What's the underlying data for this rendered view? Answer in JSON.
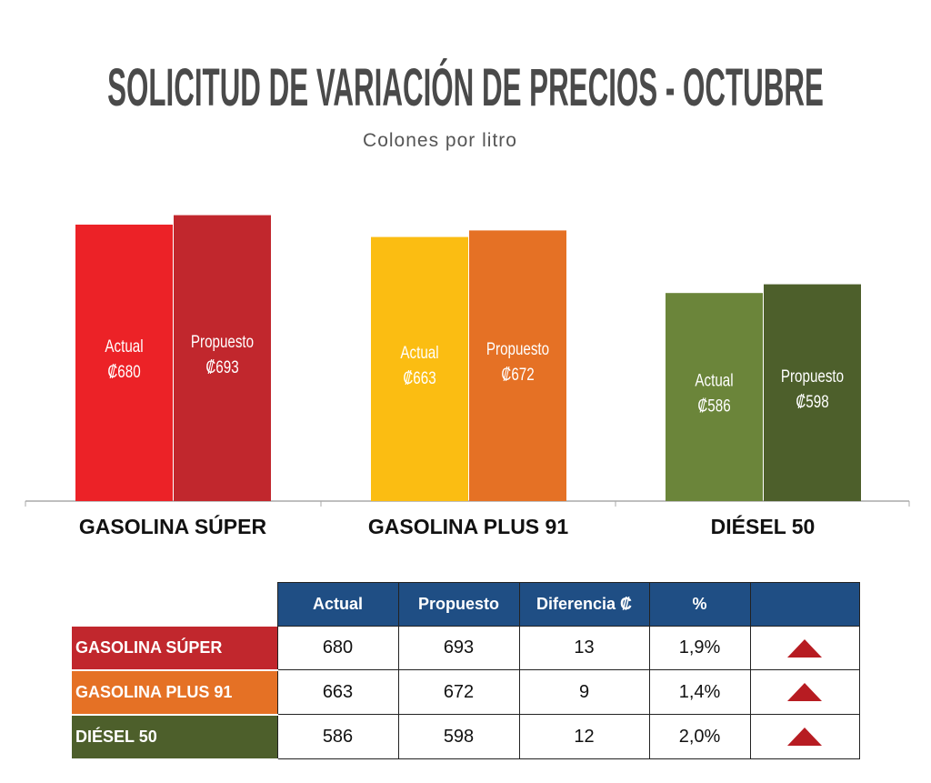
{
  "title": "SOLICITUD DE VARIACIÓN DE PRECIOS - OCTUBRE",
  "subtitle": "Colones por litro",
  "chart_data": {
    "type": "bar",
    "title": "SOLICITUD DE VARIACIÓN DE PRECIOS - OCTUBRE",
    "subtitle": "Colones por litro",
    "categories": [
      "GASOLINA SÚPER",
      "GASOLINA PLUS 91",
      "DIÉSEL 50"
    ],
    "series": [
      {
        "name": "Actual",
        "values": [
          680,
          663,
          586
        ]
      },
      {
        "name": "Propuesto",
        "values": [
          693,
          672,
          598
        ]
      }
    ],
    "value_prefix": "₡",
    "colors": [
      [
        "#ec2227",
        "#c1272d"
      ],
      [
        "#fbbd12",
        "#e57125"
      ],
      [
        "#6b853a",
        "#4d5f2b"
      ]
    ],
    "ylim": [
      300,
      730
    ],
    "grid": false
  },
  "table": {
    "headers": [
      "Actual",
      "Propuesto",
      "Diferencia ₡",
      "%"
    ],
    "rows": [
      {
        "label": "GASOLINA SÚPER",
        "color": "#c1272d",
        "actual": "680",
        "propuesto": "693",
        "diferencia": "13",
        "pct": "1,9%",
        "trend": "up-triangle-icon"
      },
      {
        "label": "GASOLINA PLUS 91",
        "color": "#e57125",
        "actual": "663",
        "propuesto": "672",
        "diferencia": "9",
        "pct": "1,4%",
        "trend": "up-triangle-icon"
      },
      {
        "label": "DIÉSEL 50",
        "color": "#4d5f2b",
        "actual": "586",
        "propuesto": "598",
        "diferencia": "12",
        "pct": "2,0%",
        "trend": "up-triangle-icon"
      }
    ]
  }
}
